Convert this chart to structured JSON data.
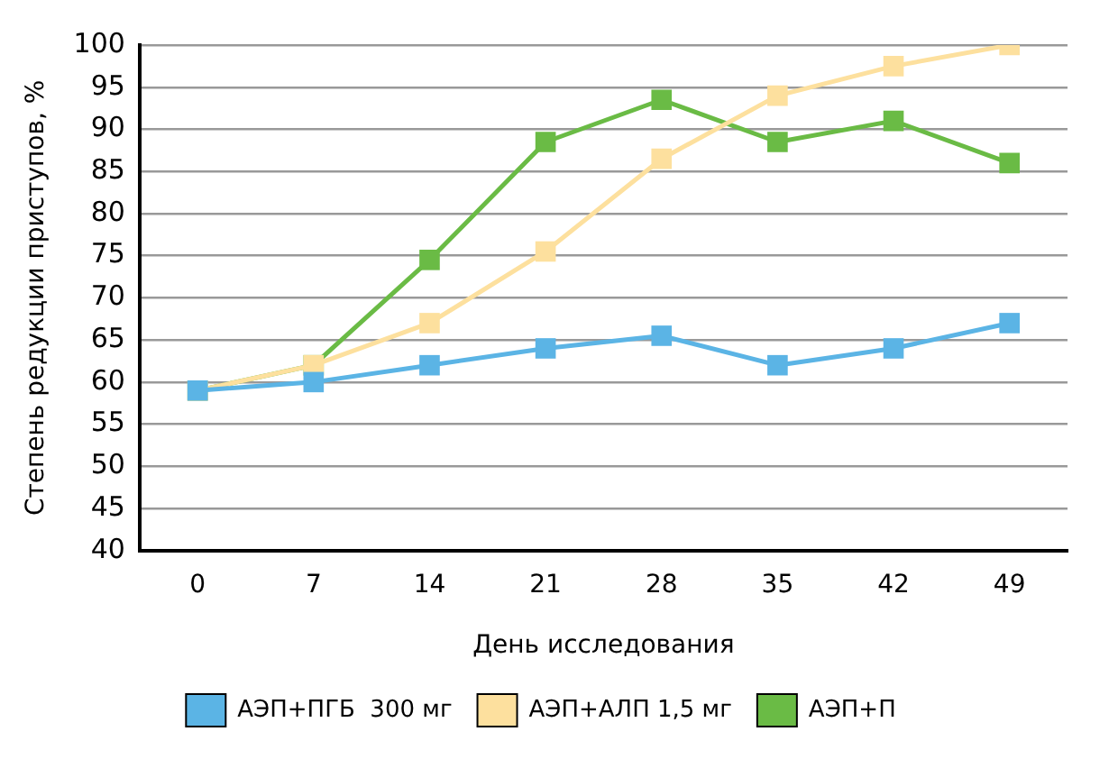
{
  "chart_data": {
    "type": "line",
    "xlabel": "День исследования",
    "ylabel": "Степень редукции приступов, %",
    "categories": [
      "0",
      "7",
      "14",
      "21",
      "28",
      "35",
      "42",
      "49"
    ],
    "series": [
      {
        "name": "АЭП+ПГБ  300 мг",
        "color": "#5bb4e5",
        "values": [
          59,
          60,
          62,
          64,
          65.5,
          62,
          64,
          67
        ]
      },
      {
        "name": "АЭП+АЛП 1,5 мг",
        "color": "#fde09e",
        "values": [
          59,
          62,
          67,
          75.5,
          86.5,
          94,
          97.5,
          100
        ]
      },
      {
        "name": "АЭП+П",
        "color": "#6abb45",
        "values": [
          59,
          62,
          74.5,
          88.5,
          93.5,
          88.5,
          91,
          86
        ]
      }
    ],
    "ylim": [
      40,
      100
    ],
    "yticks": [
      40,
      45,
      50,
      55,
      60,
      65,
      70,
      75,
      80,
      85,
      90,
      95,
      100
    ],
    "grid": "y",
    "legend": "bottom",
    "marker": "square",
    "line_style": "solid"
  }
}
